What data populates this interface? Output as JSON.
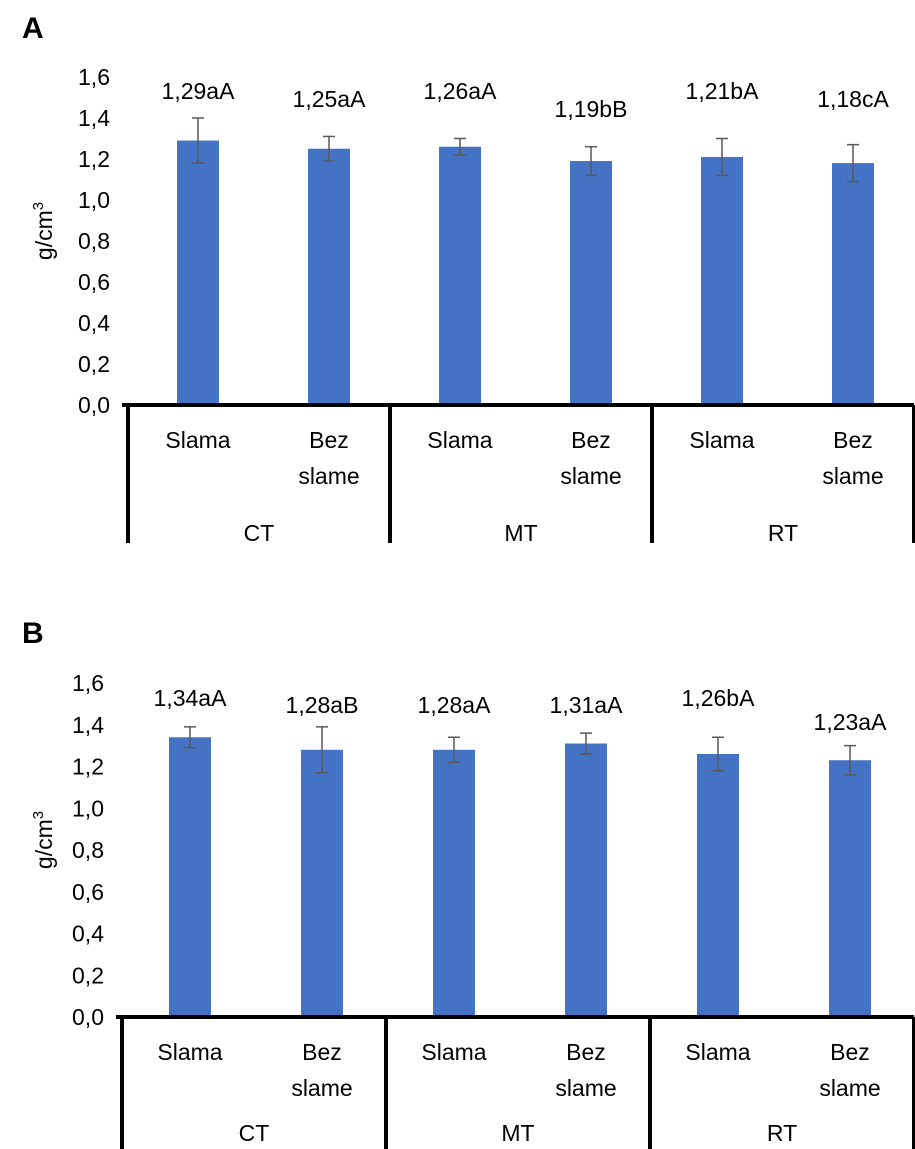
{
  "colors": {
    "bar": "#4472C4",
    "error_bar": "#595959",
    "axis": "#000000"
  },
  "chart_data": [
    {
      "type": "bar",
      "panel_label": "A",
      "ylabel": "g/cm",
      "ylabel_superscript": "3",
      "ylim": [
        0,
        1.6
      ],
      "yticks": [
        "0,0",
        "0,2",
        "0,4",
        "0,6",
        "0,8",
        "1,0",
        "1,2",
        "1,4",
        "1,6"
      ],
      "groups": [
        "CT",
        "MT",
        "RT"
      ],
      "categories": [
        [
          "Slama"
        ],
        [
          "Bez",
          "slame"
        ],
        [
          "Slama"
        ],
        [
          "Bez",
          "slame"
        ],
        [
          "Slama"
        ],
        [
          "Bez",
          "slame"
        ]
      ],
      "values": [
        1.29,
        1.25,
        1.26,
        1.19,
        1.21,
        1.18
      ],
      "errors": [
        0.11,
        0.06,
        0.04,
        0.07,
        0.09,
        0.09
      ],
      "data_labels": [
        "1,29aA",
        "1,25aA",
        "1,26aA",
        "1,19bB",
        "1,21bA",
        "1,18cA"
      ]
    },
    {
      "type": "bar",
      "panel_label": "B",
      "ylabel": "g/cm",
      "ylabel_superscript": "3",
      "ylim": [
        0,
        1.6
      ],
      "yticks": [
        "0,0",
        "0,2",
        "0,4",
        "0,6",
        "0,8",
        "1,0",
        "1,2",
        "1,4",
        "1,6"
      ],
      "groups": [
        "CT",
        "MT",
        "RT"
      ],
      "categories": [
        [
          "Slama"
        ],
        [
          "Bez",
          "slame"
        ],
        [
          "Slama"
        ],
        [
          "Bez",
          "slame"
        ],
        [
          "Slama"
        ],
        [
          "Bez",
          "slame"
        ]
      ],
      "values": [
        1.34,
        1.28,
        1.28,
        1.31,
        1.26,
        1.23
      ],
      "errors": [
        0.05,
        0.11,
        0.06,
        0.05,
        0.08,
        0.07
      ],
      "data_labels": [
        "1,34aA",
        "1,28aB",
        "1,28aA",
        "1,31aA",
        "1,26bA",
        "1,23aA"
      ]
    }
  ]
}
